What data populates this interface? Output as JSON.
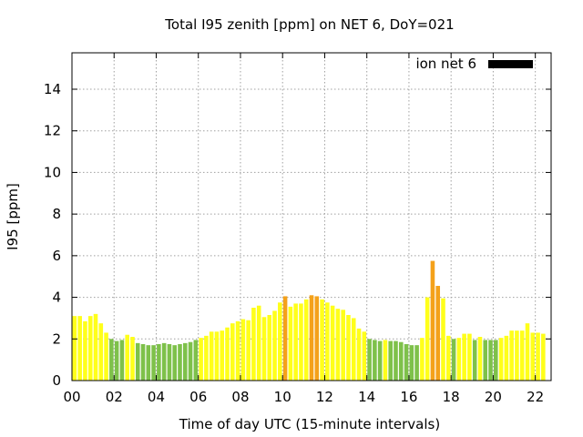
{
  "chart_data": {
    "type": "bar",
    "title": "Total I95 zenith [ppm] on NET 6, DoY=021",
    "xlabel": "Time of day UTC (15-minute intervals)",
    "ylabel": "I95 [ppm]",
    "xlim": [
      0,
      22.75
    ],
    "ylim": [
      0,
      15.75
    ],
    "x_ticks": [
      {
        "value": 0,
        "label": "00"
      },
      {
        "value": 2,
        "label": "02"
      },
      {
        "value": 4,
        "label": "04"
      },
      {
        "value": 6,
        "label": "06"
      },
      {
        "value": 8,
        "label": "08"
      },
      {
        "value": 10,
        "label": "10"
      },
      {
        "value": 12,
        "label": "12"
      },
      {
        "value": 14,
        "label": "14"
      },
      {
        "value": 16,
        "label": "16"
      },
      {
        "value": 18,
        "label": "18"
      },
      {
        "value": 20,
        "label": "20"
      },
      {
        "value": 22,
        "label": "22"
      }
    ],
    "y_ticks": [
      {
        "value": 0,
        "label": "0"
      },
      {
        "value": 2,
        "label": "2"
      },
      {
        "value": 4,
        "label": "4"
      },
      {
        "value": 6,
        "label": "6"
      },
      {
        "value": 8,
        "label": "8"
      },
      {
        "value": 10,
        "label": "10"
      },
      {
        "value": 12,
        "label": "12"
      },
      {
        "value": 14,
        "label": "14"
      }
    ],
    "grid": true,
    "legend": {
      "label": "ion net 6",
      "color": "#000000",
      "placement": "top-right"
    },
    "bar_interval_hours": 0.25,
    "category_colors": {
      "green": "#7ec14a",
      "yellow": "#ffff1a",
      "orange": "#f4a11a"
    },
    "series": [
      {
        "name": "ion net 6",
        "values": [
          3.1,
          3.1,
          2.85,
          3.1,
          3.2,
          2.75,
          2.3,
          2.0,
          1.9,
          1.95,
          2.2,
          2.1,
          1.8,
          1.75,
          1.7,
          1.7,
          1.75,
          1.8,
          1.75,
          1.7,
          1.75,
          1.8,
          1.85,
          1.95,
          2.05,
          2.15,
          2.35,
          2.35,
          2.4,
          2.55,
          2.75,
          2.85,
          2.95,
          2.9,
          3.5,
          3.6,
          3.05,
          3.15,
          3.35,
          3.75,
          4.05,
          3.55,
          3.7,
          3.7,
          3.9,
          4.1,
          4.05,
          3.9,
          3.75,
          3.6,
          3.45,
          3.4,
          3.15,
          3.0,
          2.5,
          2.35,
          2.0,
          1.95,
          1.9,
          1.95,
          1.9,
          1.9,
          1.85,
          1.75,
          1.7,
          1.7,
          2.05,
          4.0,
          5.75,
          4.55,
          3.95,
          2.15,
          2.0,
          2.05,
          2.25,
          2.25,
          1.95,
          2.1,
          1.95,
          1.95,
          1.95,
          2.05,
          2.15,
          2.4,
          2.4,
          2.4,
          2.75,
          2.3,
          2.3,
          2.25
        ],
        "categories": [
          "yellow",
          "yellow",
          "yellow",
          "yellow",
          "yellow",
          "yellow",
          "yellow",
          "green",
          "green",
          "green",
          "yellow",
          "yellow",
          "green",
          "green",
          "green",
          "green",
          "green",
          "green",
          "green",
          "green",
          "green",
          "green",
          "green",
          "green",
          "yellow",
          "yellow",
          "yellow",
          "yellow",
          "yellow",
          "yellow",
          "yellow",
          "yellow",
          "yellow",
          "yellow",
          "yellow",
          "yellow",
          "yellow",
          "yellow",
          "yellow",
          "yellow",
          "orange",
          "yellow",
          "yellow",
          "yellow",
          "yellow",
          "orange",
          "orange",
          "yellow",
          "yellow",
          "yellow",
          "yellow",
          "yellow",
          "yellow",
          "yellow",
          "yellow",
          "yellow",
          "green",
          "green",
          "green",
          "yellow",
          "green",
          "green",
          "green",
          "green",
          "green",
          "green",
          "yellow",
          "yellow",
          "orange",
          "orange",
          "yellow",
          "yellow",
          "green",
          "yellow",
          "yellow",
          "yellow",
          "green",
          "yellow",
          "green",
          "green",
          "green",
          "yellow",
          "yellow",
          "yellow",
          "yellow",
          "yellow",
          "yellow",
          "yellow",
          "yellow",
          "yellow"
        ]
      }
    ]
  }
}
